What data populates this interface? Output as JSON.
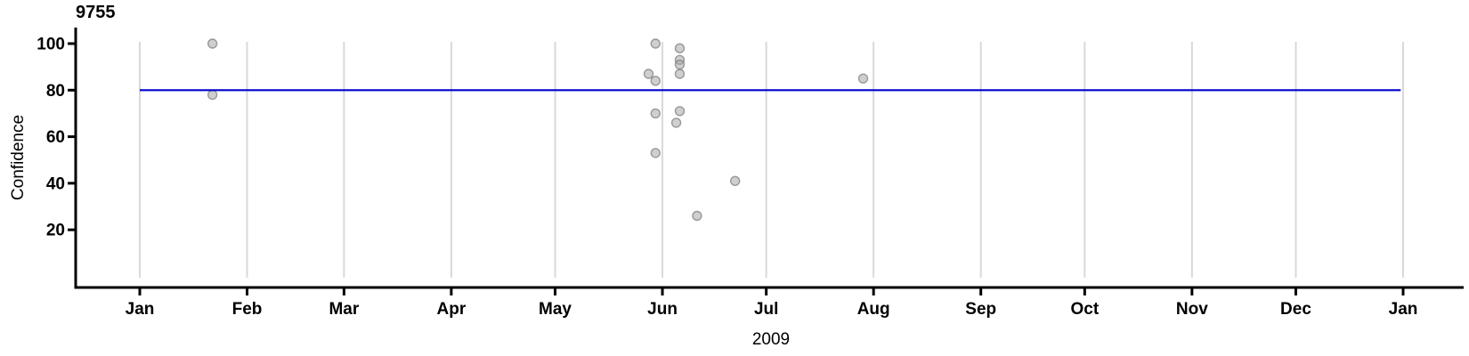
{
  "chart_data": {
    "type": "scatter",
    "title": "9755",
    "xlabel": "2009",
    "ylabel": "Confidence",
    "x_axis": {
      "start_date": "2009-01-01",
      "end_date": "2010-01-01",
      "tick_labels": [
        "Jan",
        "Feb",
        "Mar",
        "Apr",
        "May",
        "Jun",
        "Jul",
        "Aug",
        "Sep",
        "Oct",
        "Nov",
        "Dec",
        "Jan"
      ],
      "tick_day_offsets": [
        0,
        31,
        59,
        90,
        120,
        151,
        181,
        212,
        243,
        273,
        304,
        334,
        365
      ],
      "grid": "vertical month gridlines"
    },
    "y_axis": {
      "tick_values": [
        100,
        80,
        60,
        40,
        20
      ],
      "min": 0,
      "max": 105
    },
    "reference_line": {
      "value": 80,
      "color": "#0000cd"
    },
    "point_style": {
      "fill": "#cdcdcd",
      "stroke": "#a3a3a3",
      "radius_px": 5
    },
    "points": [
      {
        "date": "2009-01-22",
        "confidence": 100
      },
      {
        "date": "2009-01-22",
        "confidence": 78
      },
      {
        "date": "2009-05-28",
        "confidence": 87
      },
      {
        "date": "2009-05-30",
        "confidence": 100
      },
      {
        "date": "2009-05-30",
        "confidence": 84
      },
      {
        "date": "2009-05-30",
        "confidence": 70
      },
      {
        "date": "2009-05-30",
        "confidence": 53
      },
      {
        "date": "2009-06-05",
        "confidence": 66
      },
      {
        "date": "2009-06-06",
        "confidence": 98
      },
      {
        "date": "2009-06-06",
        "confidence": 93
      },
      {
        "date": "2009-06-06",
        "confidence": 91
      },
      {
        "date": "2009-06-06",
        "confidence": 87
      },
      {
        "date": "2009-06-06",
        "confidence": 71
      },
      {
        "date": "2009-06-11",
        "confidence": 26
      },
      {
        "date": "2009-06-22",
        "confidence": 41
      },
      {
        "date": "2009-07-29",
        "confidence": 85
      }
    ]
  }
}
